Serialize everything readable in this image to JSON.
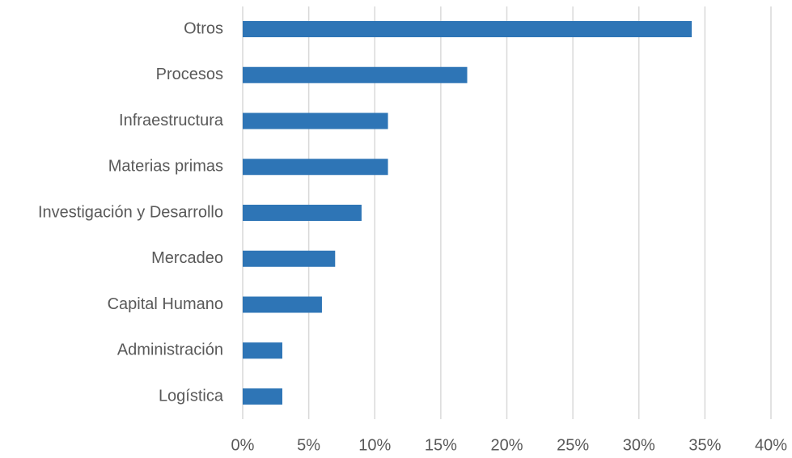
{
  "chart_data": {
    "type": "hbar",
    "categories": [
      "Otros",
      "Procesos",
      "Infraestructura",
      "Materias primas",
      "Investigación y Desarrollo",
      "Mercadeo",
      "Capital Humano",
      "Administración",
      "Logística"
    ],
    "values": [
      34,
      17,
      11,
      11,
      9,
      7,
      6,
      3,
      3
    ],
    "color": "#2e75b6",
    "xlim": [
      0,
      40
    ],
    "xticks": [
      {
        "value": 0,
        "label": "0%"
      },
      {
        "value": 5,
        "label": "5%"
      },
      {
        "value": 10,
        "label": "10%"
      },
      {
        "value": 15,
        "label": "15%"
      },
      {
        "value": 20,
        "label": "20%"
      },
      {
        "value": 25,
        "label": "25%"
      },
      {
        "value": 30,
        "label": "30%"
      },
      {
        "value": 35,
        "label": "35%"
      },
      {
        "value": 40,
        "label": "40%"
      }
    ],
    "grid": true
  }
}
